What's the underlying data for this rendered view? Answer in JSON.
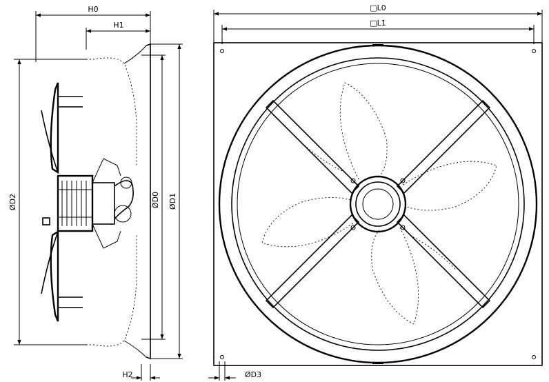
{
  "side_view": {
    "dims": {
      "h0": "H0",
      "h1": "H1",
      "d2": "ØD2",
      "d0": "ØD0",
      "d1": "ØD1",
      "h2": "H2"
    }
  },
  "front_view": {
    "dims": {
      "l0": "□L0",
      "l1": "□L1",
      "d3": "ØD3"
    }
  }
}
